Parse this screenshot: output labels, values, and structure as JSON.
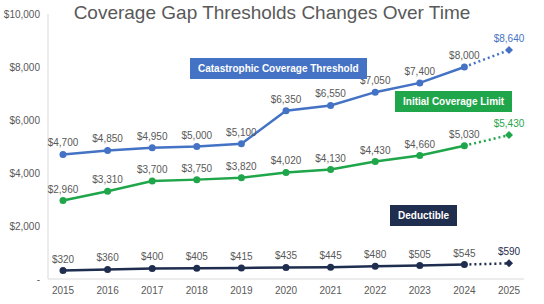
{
  "chart_data": {
    "type": "line",
    "title": "Coverage Gap Thresholds Changes Over Time",
    "categories": [
      "2015",
      "2016",
      "2017",
      "2018",
      "2019",
      "2020",
      "2021",
      "2022",
      "2023",
      "2024",
      "2025"
    ],
    "series": [
      {
        "name": "Catastrophic Coverage Threshold",
        "color": "#4472c4",
        "values": [
          4700,
          4850,
          4950,
          5000,
          5100,
          6350,
          6550,
          7050,
          7400,
          8000,
          8640
        ],
        "value_labels": [
          "$4,700",
          "$4,850",
          "$4,950",
          "$5,000",
          "$5,100",
          "$6,350",
          "$6,550",
          "$7,050",
          "$7,400",
          "$8,000",
          "$8,640"
        ]
      },
      {
        "name": "Initial Coverage Limit",
        "color": "#1fa64a",
        "values": [
          2960,
          3310,
          3700,
          3750,
          3820,
          4020,
          4130,
          4430,
          4660,
          5030,
          5430
        ],
        "value_labels": [
          "$2,960",
          "$3,310",
          "$3,700",
          "$3,750",
          "$3,820",
          "$4,020",
          "$4,130",
          "$4,430",
          "$4,660",
          "$5,030",
          "$5,430"
        ]
      },
      {
        "name": "Deductible",
        "color": "#1f2d4f",
        "values": [
          320,
          360,
          400,
          405,
          415,
          435,
          445,
          480,
          505,
          545,
          590
        ],
        "value_labels": [
          "$320",
          "$360",
          "$400",
          "$405",
          "$415",
          "$435",
          "$445",
          "$480",
          "$505",
          "$545",
          "$590"
        ]
      }
    ],
    "ylim": [
      0,
      10000
    ],
    "yticks": [
      {
        "value": 0,
        "label": "-"
      },
      {
        "value": 2000,
        "label": "$2,000"
      },
      {
        "value": 4000,
        "label": "$4,000"
      },
      {
        "value": 6000,
        "label": "$6,000"
      },
      {
        "value": 8000,
        "label": "$8,000"
      },
      {
        "value": 10000,
        "label": "$10,000"
      }
    ],
    "grid": false,
    "data_labels": true,
    "marker": "circle"
  }
}
